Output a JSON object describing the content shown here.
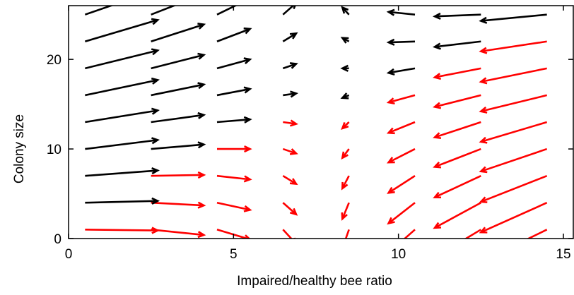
{
  "chart_data": {
    "type": "quiver",
    "xlabel": "Impaired/healthy bee ratio",
    "ylabel": "Colony size",
    "xlim": [
      0,
      15.3
    ],
    "ylim": [
      0,
      26
    ],
    "xticks": [
      0,
      5,
      10,
      15
    ],
    "yticks": [
      0,
      10,
      20
    ],
    "series": [
      {
        "color": "#ff0000",
        "x": [
          0.5,
          2.5,
          2.5,
          2.5,
          4.5,
          4.5,
          4.5,
          4.5,
          6.5,
          6.5,
          6.5,
          6.5,
          6.5,
          8.5,
          8.5,
          8.5,
          8.5,
          8.5,
          10.5,
          10.5,
          10.5,
          10.5,
          10.5,
          10.5,
          12.5,
          12.5,
          12.5,
          12.5,
          12.5,
          12.5,
          12.5,
          14.5,
          14.5,
          14.5,
          14.5,
          14.5,
          14.5,
          14.5,
          14.5
        ],
        "y": [
          1,
          1,
          4,
          7,
          1,
          4,
          7,
          10,
          1,
          4,
          7,
          10,
          13,
          1,
          4,
          7,
          10,
          13,
          1,
          4,
          7,
          10,
          13,
          16,
          1,
          4,
          7,
          10,
          13,
          16,
          19,
          1,
          4,
          7,
          10,
          13,
          16,
          19,
          22
        ],
        "u": [
          2.2,
          1.6,
          1.6,
          1.6,
          1.0,
          1.0,
          1.0,
          1.0,
          0.4,
          0.4,
          0.4,
          0.4,
          0.4,
          -0.2,
          -0.2,
          -0.2,
          -0.2,
          -0.2,
          -0.8,
          -0.8,
          -0.8,
          -0.8,
          -0.8,
          -0.8,
          -1.4,
          -1.4,
          -1.4,
          -1.4,
          -1.4,
          -1.4,
          -1.4,
          -2.0,
          -2.0,
          -2.0,
          -2.0,
          -2.0,
          -2.0,
          -2.0,
          -2.0
        ],
        "v": [
          -0.1,
          -0.6,
          -0.3,
          0.1,
          -1.1,
          -0.8,
          -0.4,
          0.0,
          -1.6,
          -1.3,
          -0.9,
          -0.5,
          -0.2,
          -2.1,
          -1.8,
          -1.4,
          -1.0,
          -0.7,
          -2.6,
          -2.3,
          -1.9,
          -1.5,
          -1.2,
          -0.8,
          -3.1,
          -2.8,
          -2.4,
          -2.0,
          -1.7,
          -1.3,
          -1.0,
          -3.6,
          -3.3,
          -2.9,
          -2.5,
          -2.2,
          -1.8,
          -1.5,
          -1.1
        ]
      },
      {
        "color": "#000000",
        "x": [
          0.5,
          0.5,
          0.5,
          0.5,
          0.5,
          0.5,
          0.5,
          0.5,
          2.5,
          2.5,
          2.5,
          2.5,
          2.5,
          2.5,
          4.5,
          4.5,
          4.5,
          4.5,
          4.5,
          6.5,
          6.5,
          6.5,
          6.5,
          8.5,
          8.5,
          8.5,
          8.5,
          10.5,
          10.5,
          10.5,
          12.5,
          12.5,
          14.5
        ],
        "y": [
          4,
          7,
          10,
          13,
          16,
          19,
          22,
          25,
          10,
          13,
          16,
          19,
          22,
          25,
          13,
          16,
          19,
          22,
          25,
          16,
          19,
          22,
          25,
          16,
          19,
          22,
          25,
          19,
          22,
          25,
          22,
          25,
          25
        ],
        "u": [
          2.2,
          2.2,
          2.2,
          2.2,
          2.2,
          2.2,
          2.2,
          2.2,
          1.6,
          1.6,
          1.6,
          1.6,
          1.6,
          1.6,
          1.0,
          1.0,
          1.0,
          1.0,
          1.0,
          0.4,
          0.4,
          0.4,
          0.4,
          -0.2,
          -0.2,
          -0.2,
          -0.2,
          -0.8,
          -0.8,
          -0.8,
          -1.4,
          -1.4,
          -2.0
        ],
        "v": [
          0.2,
          0.6,
          1.0,
          1.3,
          1.7,
          2.0,
          2.4,
          2.8,
          0.5,
          0.8,
          1.2,
          1.5,
          1.9,
          2.3,
          0.3,
          0.7,
          1.0,
          1.4,
          1.8,
          0.2,
          0.5,
          0.9,
          1.3,
          -0.3,
          0.0,
          0.4,
          0.8,
          -0.5,
          -0.1,
          0.3,
          -0.6,
          -0.2,
          -0.7
        ]
      }
    ]
  }
}
